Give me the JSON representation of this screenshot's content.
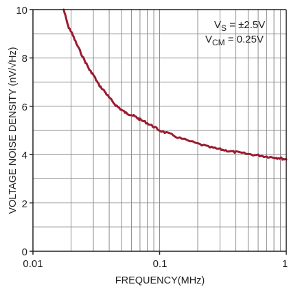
{
  "chart_data": {
    "type": "line",
    "x_scale": "log",
    "xlim": [
      0.01,
      1
    ],
    "ylim": [
      0,
      10
    ],
    "grid": true,
    "xlabel": "FREQUENCY(MHz)",
    "ylabel": "VOLTAGE NOISE DENSITY (nV/√Hz)",
    "x_ticks": [
      "0.01",
      "0.1",
      "1"
    ],
    "y_ticks": [
      "0",
      "2",
      "4",
      "6",
      "8",
      "10"
    ],
    "annotations": [
      {
        "main": "V",
        "sub": "S",
        "rest": " = ±2.5V"
      },
      {
        "main": "V",
        "sub": "CM",
        "rest": " = 0.25V"
      }
    ],
    "line_color": "#9b1b30",
    "series": [
      {
        "x": [
          0.0175,
          0.019,
          0.02,
          0.022,
          0.025,
          0.028,
          0.03,
          0.033,
          0.037,
          0.04,
          0.045,
          0.05,
          0.055,
          0.06,
          0.065,
          0.07,
          0.08,
          0.09,
          0.1,
          0.12,
          0.15,
          0.2,
          0.25,
          0.3,
          0.35,
          0.4,
          0.5,
          0.6,
          0.7,
          0.8,
          0.9,
          1.0
        ],
        "y": [
          10.0,
          9.3,
          9.1,
          8.6,
          8.0,
          7.5,
          7.3,
          6.9,
          6.6,
          6.35,
          6.05,
          5.85,
          5.7,
          5.65,
          5.55,
          5.45,
          5.3,
          5.15,
          5.0,
          4.85,
          4.65,
          4.45,
          4.3,
          4.22,
          4.15,
          4.1,
          4.02,
          3.97,
          3.92,
          3.88,
          3.85,
          3.8
        ]
      }
    ]
  }
}
